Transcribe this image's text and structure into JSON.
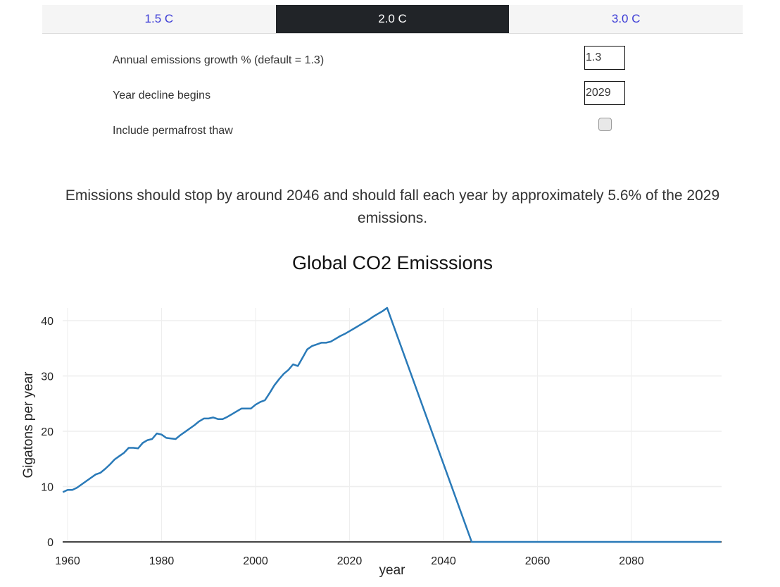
{
  "tabs": [
    {
      "label": "1.5 C",
      "active": false
    },
    {
      "label": "2.0 C",
      "active": true
    },
    {
      "label": "3.0 C",
      "active": false
    }
  ],
  "params": {
    "growth": {
      "label": "Annual emissions growth % (default = 1.3)",
      "value": "1.3"
    },
    "decline_year": {
      "label": "Year decline begins",
      "value": "2029"
    },
    "permafrost": {
      "label": "Include permafrost thaw",
      "checked": false
    }
  },
  "summary": "Emissions should stop by around 2046 and should fall each year by approximately 5.6% of the 2029 emissions.",
  "colors": {
    "line": "#2a7ab8",
    "active_tab_bg": "#212428",
    "tab_text": "#3c3cd6",
    "grid": "#eeeeee",
    "zero_line": "#444444"
  },
  "chart_data": {
    "type": "line",
    "title": "Global CO2 Emisssions",
    "xlabel": "year",
    "ylabel": "Gigatons per year",
    "xlim": [
      1959,
      2099
    ],
    "ylim": [
      0,
      42.5
    ],
    "x_ticks": [
      1960,
      1980,
      2000,
      2020,
      2040,
      2060,
      2080
    ],
    "y_ticks": [
      0,
      10,
      20,
      30,
      40
    ],
    "grid": true,
    "legend": "none",
    "series": [
      {
        "name": "emissions",
        "x": [
          1959,
          1960,
          1961,
          1962,
          1963,
          1964,
          1965,
          1966,
          1967,
          1968,
          1969,
          1970,
          1971,
          1972,
          1973,
          1974,
          1975,
          1976,
          1977,
          1978,
          1979,
          1980,
          1981,
          1982,
          1983,
          1984,
          1985,
          1986,
          1987,
          1988,
          1989,
          1990,
          1991,
          1992,
          1993,
          1994,
          1995,
          1996,
          1997,
          1998,
          1999,
          2000,
          2001,
          2002,
          2003,
          2004,
          2005,
          2006,
          2007,
          2008,
          2009,
          2010,
          2011,
          2012,
          2013,
          2014,
          2015,
          2016,
          2017,
          2018,
          2019,
          2020,
          2021,
          2022,
          2023,
          2024,
          2025,
          2026,
          2027,
          2028,
          2046,
          2099
        ],
        "y": [
          9.0,
          9.4,
          9.4,
          9.8,
          10.4,
          11.0,
          11.6,
          12.2,
          12.5,
          13.2,
          14.0,
          14.9,
          15.5,
          16.1,
          17.0,
          17.0,
          16.9,
          17.9,
          18.4,
          18.6,
          19.6,
          19.4,
          18.8,
          18.7,
          18.6,
          19.3,
          19.9,
          20.5,
          21.1,
          21.8,
          22.3,
          22.3,
          22.5,
          22.2,
          22.2,
          22.6,
          23.1,
          23.6,
          24.1,
          24.1,
          24.1,
          24.8,
          25.3,
          25.6,
          26.9,
          28.3,
          29.4,
          30.4,
          31.1,
          32.1,
          31.8,
          33.3,
          34.8,
          35.4,
          35.7,
          36.0,
          36.0,
          36.2,
          36.7,
          37.2,
          37.6,
          38.1,
          38.6,
          39.1,
          39.6,
          40.1,
          40.7,
          41.2,
          41.7,
          42.3,
          0,
          0
        ]
      }
    ]
  }
}
